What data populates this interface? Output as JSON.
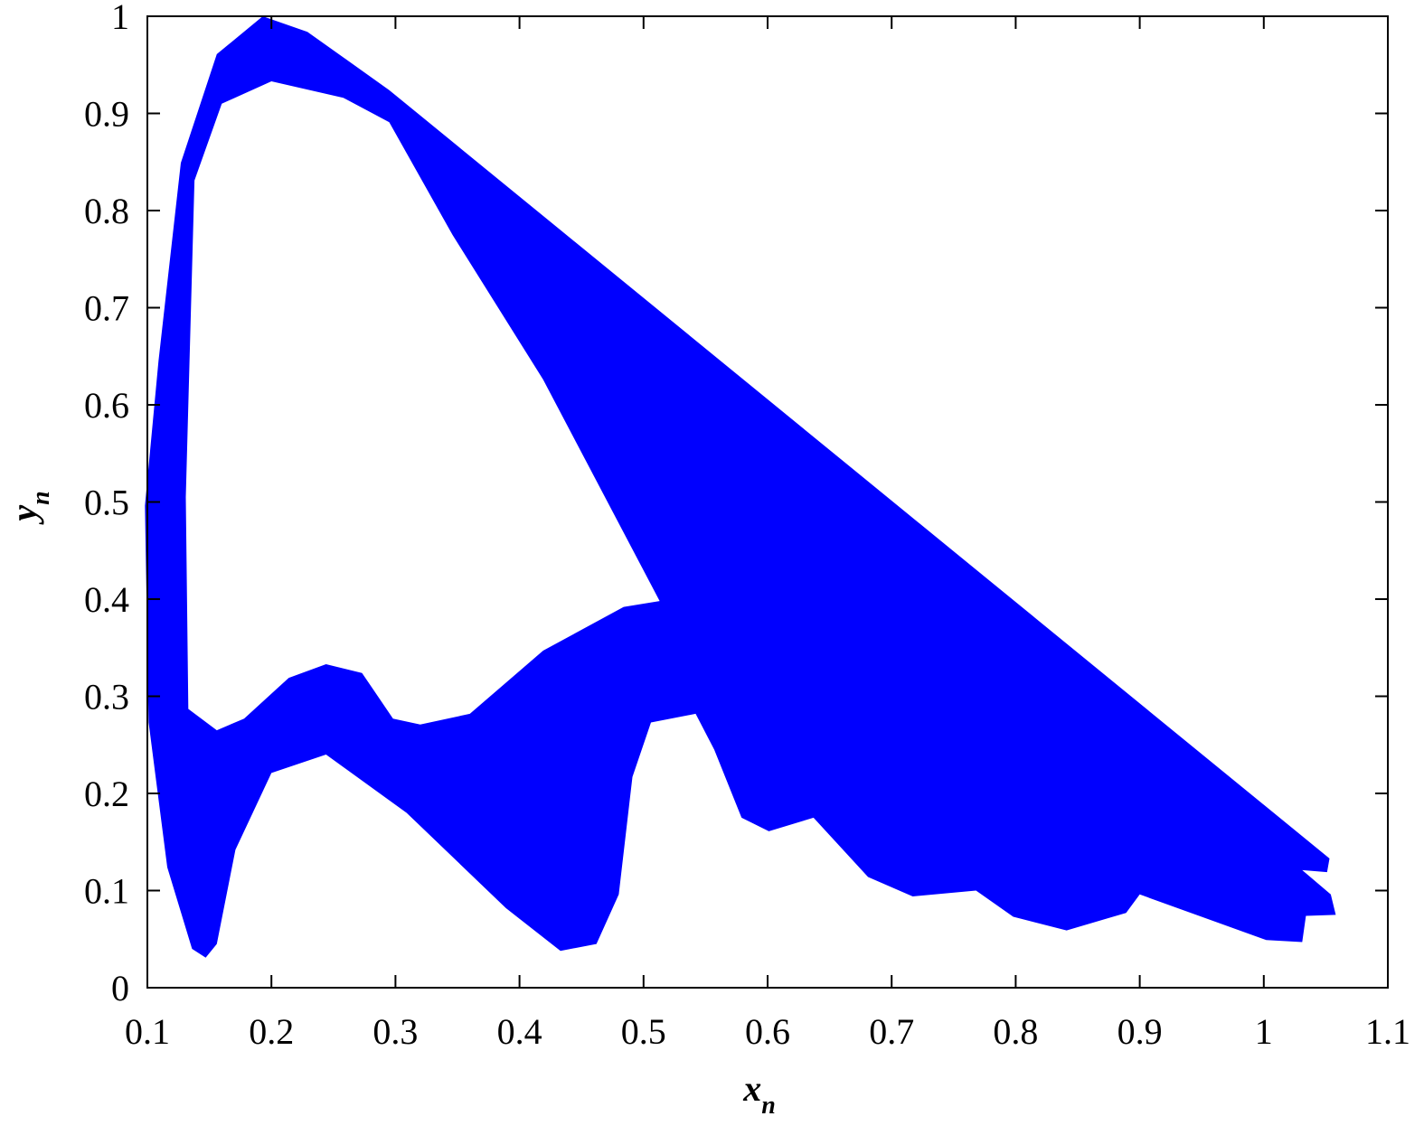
{
  "chart_data": {
    "type": "region",
    "xlabel": {
      "text": "x",
      "subscript": "n"
    },
    "ylabel": {
      "text": "y",
      "subscript": "n"
    },
    "series": [
      {
        "color": "#0000ff",
        "x": [
          0.098,
          0.109,
          0.127,
          0.156,
          0.193,
          0.229,
          0.295,
          1.053,
          1.051,
          1.031,
          1.054,
          1.058,
          1.034,
          1.031,
          1.002,
          0.9,
          0.889,
          0.841,
          0.798,
          0.768,
          0.717,
          0.681,
          0.637,
          0.601,
          0.579,
          0.557,
          0.542,
          0.506,
          0.491,
          0.48,
          0.462,
          0.433,
          0.389,
          0.309,
          0.244,
          0.2,
          0.171,
          0.156,
          0.147,
          0.136,
          0.116,
          0.101,
          null,
          0.133,
          0.131,
          0.138,
          0.16,
          0.2,
          0.258,
          0.295,
          0.346,
          0.419,
          0.513,
          0.484,
          0.419,
          0.36,
          0.32,
          0.298,
          0.273,
          0.244,
          0.214,
          0.178,
          0.156
        ],
        "y": [
          0.496,
          0.645,
          0.849,
          0.961,
          1.0,
          0.984,
          0.924,
          0.133,
          0.119,
          0.121,
          0.096,
          0.075,
          0.074,
          0.047,
          0.049,
          0.096,
          0.077,
          0.059,
          0.073,
          0.1,
          0.094,
          0.114,
          0.175,
          0.161,
          0.175,
          0.245,
          0.282,
          0.273,
          0.217,
          0.096,
          0.045,
          0.038,
          0.082,
          0.18,
          0.24,
          0.221,
          0.142,
          0.045,
          0.031,
          0.04,
          0.124,
          0.273,
          null,
          0.287,
          0.505,
          0.831,
          0.91,
          0.933,
          0.916,
          0.891,
          0.775,
          0.626,
          0.398,
          0.392,
          0.347,
          0.282,
          0.271,
          0.277,
          0.324,
          0.333,
          0.319,
          0.277,
          0.265
        ]
      }
    ],
    "xlim": [
      0.1,
      1.1
    ],
    "xticks": [
      0.1,
      0.2,
      0.3,
      0.4,
      0.5,
      0.6,
      0.7,
      0.8,
      0.9,
      1,
      1.1
    ],
    "ylim": [
      0,
      1
    ],
    "yticks": [
      0,
      0.1,
      0.2,
      0.3,
      0.4,
      0.5,
      0.6,
      0.7,
      0.8,
      0.9,
      1
    ],
    "grid": false
  }
}
